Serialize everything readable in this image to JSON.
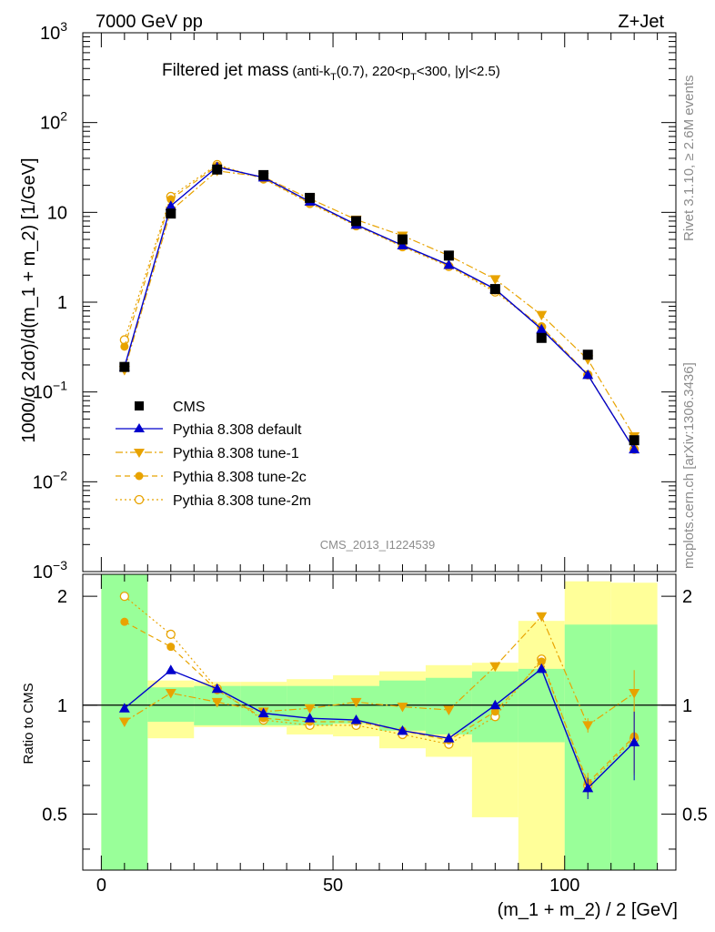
{
  "header": {
    "left": "7000 GeV pp",
    "right": "Z+Jet"
  },
  "plot_title": {
    "main": "Filtered jet mass",
    "cuts_a": "(anti-k",
    "cuts_sub1": "T",
    "cuts_b": "(0.7), 220<p",
    "cuts_sub2": "T",
    "cuts_c": "<300, |y|<2.5)"
  },
  "side_labels": {
    "rivet": "Rivet 3.1.10, ≥ 2.6M events",
    "mcplots": "mcplots.cern.ch [arXiv:1306.3436]"
  },
  "analysis_id": "CMS_2013_I1224539",
  "colors": {
    "cms": "#000000",
    "default": "#0000cc",
    "tune": "#e8a300",
    "band_green": "#99ff99",
    "band_yellow": "#ffff99"
  },
  "chart_data": [
    {
      "type": "scatter",
      "title": "Filtered jet mass",
      "xlabel": "(m_1 + m_2) / 2 [GeV]",
      "ylabel": "1000/σ 2dσ)/d(m_1 + m_2) [1/GeV]",
      "yscale": "log",
      "xlim": [
        -4,
        124
      ],
      "ylim": [
        0.001,
        1000
      ],
      "x_ticks": [
        "0",
        "50",
        "100"
      ],
      "y_ticks": [
        "10^-3",
        "10^-2",
        "10^-1",
        "1",
        "10",
        "10^2",
        "10^3"
      ],
      "legend_placement": "lower-left",
      "x": [
        5,
        15,
        25,
        35,
        45,
        55,
        65,
        75,
        85,
        95,
        105,
        115
      ],
      "series": [
        {
          "name": "CMS",
          "values": [
            0.19,
            9.7,
            30,
            26,
            14.5,
            8.0,
            5.0,
            3.3,
            1.4,
            0.4,
            0.26,
            0.029
          ],
          "style": "square"
        },
        {
          "name": "Pythia 8.308 default",
          "values": [
            0.19,
            11.8,
            32,
            24.5,
            13.2,
            7.3,
            4.3,
            2.6,
            1.4,
            0.5,
            0.155,
            0.023
          ],
          "style": "triangle-up"
        },
        {
          "name": "Pythia 8.308 tune-1",
          "values": [
            0.175,
            10.4,
            29,
            24.8,
            14.2,
            8.3,
            5.5,
            3.3,
            1.8,
            0.72,
            0.23,
            0.032
          ],
          "style": "triangle-down"
        },
        {
          "name": "Pythia 8.308 tune-2c",
          "values": [
            0.32,
            14.0,
            33,
            23.8,
            12.8,
            7.2,
            4.2,
            2.55,
            1.35,
            0.53,
            0.157,
            0.023
          ],
          "style": "circle-filled"
        },
        {
          "name": "Pythia 8.308 tune-2m",
          "values": [
            0.38,
            15.0,
            34,
            23.6,
            12.6,
            7.1,
            4.15,
            2.5,
            1.3,
            0.53,
            0.155,
            0.023
          ],
          "style": "circle-open"
        }
      ]
    },
    {
      "type": "scatter",
      "ylabel": "Ratio to CMS",
      "xlabel": "(m_1 + m_2) / 2 [GeV]",
      "yscale": "log",
      "ylim": [
        0.35,
        2.3
      ],
      "y_ticks": [
        "0.5",
        "1",
        "2"
      ],
      "x": [
        5,
        15,
        25,
        35,
        45,
        55,
        65,
        75,
        85,
        95,
        105,
        115
      ],
      "bands": {
        "edges": [
          0,
          10,
          20,
          30,
          40,
          50,
          60,
          70,
          80,
          90,
          100,
          110,
          120
        ],
        "green": [
          [
            0.35,
            2.3
          ],
          [
            0.9,
            1.12
          ],
          [
            0.88,
            1.13
          ],
          [
            0.88,
            1.13
          ],
          [
            0.88,
            1.13
          ],
          [
            0.89,
            1.13
          ],
          [
            0.85,
            1.17
          ],
          [
            0.83,
            1.19
          ],
          [
            0.79,
            1.24
          ],
          [
            0.79,
            1.26
          ],
          [
            0.35,
            1.67
          ],
          [
            0.35,
            1.67
          ]
        ],
        "yellow": [
          [
            0.35,
            2.3
          ],
          [
            0.81,
            1.17
          ],
          [
            0.87,
            1.16
          ],
          [
            0.87,
            1.16
          ],
          [
            0.83,
            1.18
          ],
          [
            0.82,
            1.21
          ],
          [
            0.76,
            1.24
          ],
          [
            0.72,
            1.29
          ],
          [
            0.49,
            1.31
          ],
          [
            0.35,
            1.71
          ],
          [
            0.35,
            2.2
          ],
          [
            0.35,
            2.18
          ]
        ]
      },
      "series": [
        {
          "name": "Pythia 8.308 default",
          "values": [
            0.98,
            1.25,
            1.11,
            0.95,
            0.92,
            0.91,
            0.85,
            0.81,
            1.0,
            1.26,
            0.59,
            0.79
          ]
        },
        {
          "name": "Pythia 8.308 tune-1",
          "values": [
            0.9,
            1.08,
            1.02,
            0.96,
            0.98,
            1.02,
            0.99,
            0.97,
            1.28,
            1.76,
            0.88,
            1.08
          ]
        },
        {
          "name": "Pythia 8.308 tune-2c",
          "values": [
            1.7,
            1.45,
            1.1,
            0.92,
            0.9,
            0.9,
            0.85,
            0.8,
            0.96,
            1.32,
            0.61,
            0.82
          ]
        },
        {
          "name": "Pythia 8.308 tune-2m",
          "values": [
            2.0,
            1.57,
            1.11,
            0.91,
            0.88,
            0.88,
            0.83,
            0.78,
            0.93,
            1.34,
            0.6,
            0.81
          ]
        }
      ]
    }
  ]
}
